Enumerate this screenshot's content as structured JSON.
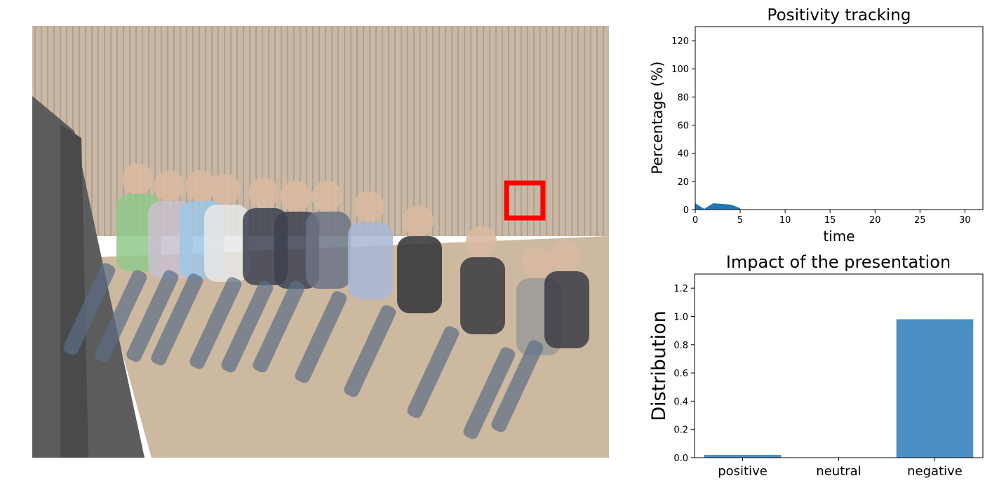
{
  "photo": {
    "description_icon": "audience-photo",
    "highlight_color": "#ff0000"
  },
  "chart_data": [
    {
      "type": "area",
      "title": "Positivity tracking",
      "xlabel": "time",
      "ylabel": "Percentage (%)",
      "xlim": [
        0,
        32
      ],
      "ylim": [
        0,
        130
      ],
      "xticks": [
        0,
        5,
        10,
        15,
        20,
        25,
        30
      ],
      "yticks": [
        0,
        20,
        40,
        60,
        80,
        100,
        120
      ],
      "x": [
        0,
        1,
        2,
        3,
        4,
        5
      ],
      "values": [
        4.5,
        0.5,
        4.5,
        4.0,
        3.5,
        1.0
      ],
      "color": "#1f77b4",
      "grid": false
    },
    {
      "type": "bar",
      "title": "Impact of the presentation",
      "xlabel": "",
      "ylabel": "Distribution",
      "categories": [
        "positive",
        "neutral",
        "negative"
      ],
      "values": [
        0.02,
        0.0,
        0.98
      ],
      "ylim": [
        0,
        1.3
      ],
      "yticks": [
        0.0,
        0.2,
        0.4,
        0.6,
        0.8,
        1.0,
        1.2
      ],
      "color": "#4a90c4",
      "grid": false
    }
  ]
}
